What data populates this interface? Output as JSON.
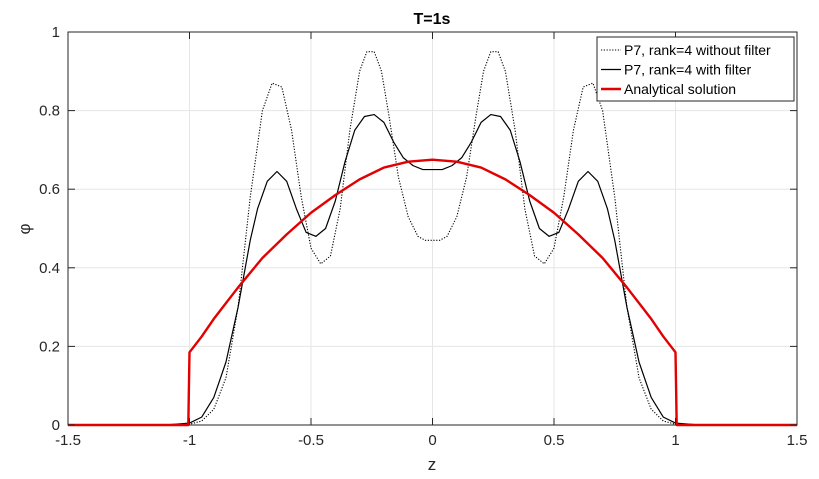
{
  "chart_data": {
    "type": "line",
    "title": "T=1s",
    "xlabel": "z",
    "ylabel": "φ",
    "xlim": [
      -1.5,
      1.5
    ],
    "ylim": [
      0,
      1
    ],
    "xticks": [
      -1.5,
      -1,
      -0.5,
      0,
      0.5,
      1,
      1.5
    ],
    "xtick_labels": [
      "-1.5",
      "-1",
      "-0.5",
      "0",
      "0.5",
      "1",
      "1.5"
    ],
    "yticks": [
      0,
      0.2,
      0.4,
      0.6,
      0.8,
      1
    ],
    "ytick_labels": [
      "0",
      "0.2",
      "0.4",
      "0.6",
      "0.8",
      "1"
    ],
    "grid": true,
    "legend_position": "top-right",
    "series": [
      {
        "name": "P7, rank=4 without filter",
        "color": "#000000",
        "style": "dotted",
        "x": [
          -1.5,
          -1.1,
          -1.0,
          -0.95,
          -0.9,
          -0.85,
          -0.8,
          -0.75,
          -0.7,
          -0.66,
          -0.62,
          -0.58,
          -0.54,
          -0.5,
          -0.46,
          -0.42,
          -0.38,
          -0.34,
          -0.3,
          -0.27,
          -0.24,
          -0.21,
          -0.18,
          -0.14,
          -0.1,
          -0.06,
          -0.03,
          0,
          0.03,
          0.06,
          0.1,
          0.14,
          0.18,
          0.21,
          0.24,
          0.27,
          0.3,
          0.34,
          0.38,
          0.42,
          0.46,
          0.5,
          0.54,
          0.58,
          0.62,
          0.66,
          0.7,
          0.75,
          0.8,
          0.85,
          0.9,
          0.95,
          1.0,
          1.1,
          1.5
        ],
        "y": [
          0,
          0,
          0.002,
          0.01,
          0.04,
          0.12,
          0.3,
          0.58,
          0.8,
          0.87,
          0.86,
          0.75,
          0.58,
          0.45,
          0.41,
          0.43,
          0.55,
          0.75,
          0.9,
          0.95,
          0.95,
          0.9,
          0.79,
          0.63,
          0.53,
          0.48,
          0.47,
          0.47,
          0.47,
          0.48,
          0.53,
          0.63,
          0.79,
          0.9,
          0.95,
          0.95,
          0.9,
          0.75,
          0.55,
          0.43,
          0.41,
          0.45,
          0.58,
          0.75,
          0.86,
          0.87,
          0.8,
          0.58,
          0.3,
          0.12,
          0.04,
          0.01,
          0.002,
          0,
          0
        ]
      },
      {
        "name": "P7, rank=4 with filter",
        "color": "#000000",
        "style": "solid",
        "x": [
          -1.5,
          -1.1,
          -1.0,
          -0.95,
          -0.9,
          -0.85,
          -0.8,
          -0.75,
          -0.72,
          -0.68,
          -0.64,
          -0.6,
          -0.56,
          -0.52,
          -0.48,
          -0.44,
          -0.4,
          -0.36,
          -0.32,
          -0.28,
          -0.24,
          -0.2,
          -0.16,
          -0.12,
          -0.08,
          -0.04,
          0,
          0.04,
          0.08,
          0.12,
          0.16,
          0.2,
          0.24,
          0.28,
          0.32,
          0.36,
          0.4,
          0.44,
          0.48,
          0.52,
          0.56,
          0.6,
          0.64,
          0.68,
          0.72,
          0.75,
          0.8,
          0.85,
          0.9,
          0.95,
          1.0,
          1.1,
          1.5
        ],
        "y": [
          0,
          0,
          0.005,
          0.02,
          0.07,
          0.16,
          0.3,
          0.47,
          0.55,
          0.62,
          0.645,
          0.62,
          0.55,
          0.49,
          0.48,
          0.5,
          0.57,
          0.67,
          0.75,
          0.785,
          0.79,
          0.77,
          0.72,
          0.68,
          0.66,
          0.65,
          0.65,
          0.65,
          0.66,
          0.68,
          0.72,
          0.77,
          0.79,
          0.785,
          0.75,
          0.67,
          0.57,
          0.5,
          0.48,
          0.49,
          0.55,
          0.62,
          0.645,
          0.62,
          0.55,
          0.47,
          0.3,
          0.16,
          0.07,
          0.02,
          0.005,
          0,
          0
        ]
      },
      {
        "name": "Analytical solution",
        "color": "#e30000",
        "style": "solid",
        "x": [
          -1.5,
          -1.005,
          -1.0,
          -0.95,
          -0.9,
          -0.85,
          -0.8,
          -0.7,
          -0.6,
          -0.5,
          -0.4,
          -0.3,
          -0.2,
          -0.1,
          0,
          0.1,
          0.2,
          0.3,
          0.4,
          0.5,
          0.6,
          0.7,
          0.8,
          0.85,
          0.9,
          0.95,
          1.0,
          1.005,
          1.5
        ],
        "y": [
          0,
          0,
          0.185,
          0.225,
          0.27,
          0.31,
          0.35,
          0.425,
          0.485,
          0.54,
          0.585,
          0.625,
          0.655,
          0.67,
          0.675,
          0.67,
          0.655,
          0.625,
          0.585,
          0.54,
          0.485,
          0.425,
          0.35,
          0.31,
          0.27,
          0.225,
          0.185,
          0,
          0
        ]
      }
    ]
  }
}
